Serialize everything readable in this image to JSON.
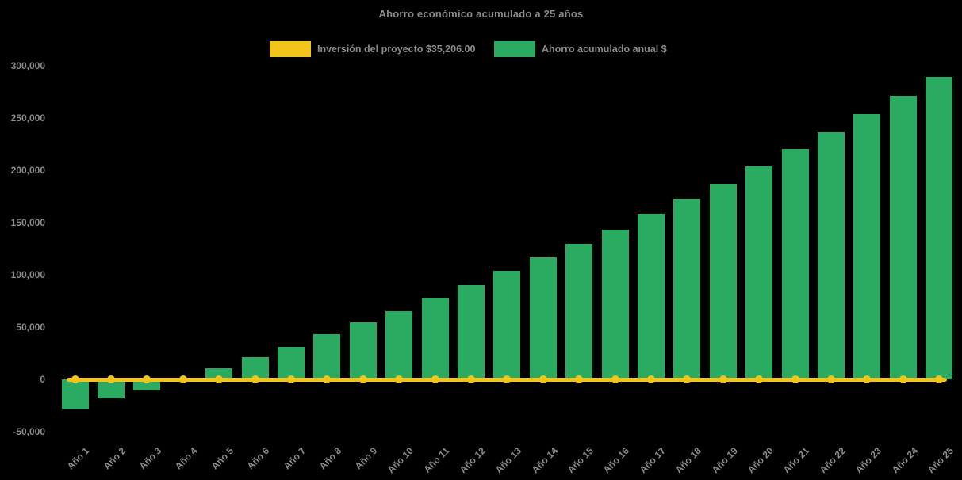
{
  "title": "Ahorro económico acumulado a 25 años",
  "colors": {
    "background": "#000000",
    "text": "#8b8b8b",
    "savings_green": "#2aab61",
    "investment_gold": "#f0c41b"
  },
  "legend": {
    "investment": {
      "label": "Inversión del proyecto $35,206.00",
      "color": "#f0c41b"
    },
    "savings": {
      "label": "Ahorro acumulado anual $",
      "color": "#2aab61"
    }
  },
  "chart_data": {
    "type": "bar",
    "title": "Ahorro económico acumulado a 25 años",
    "categories": [
      "Año 1",
      "Año 2",
      "Año 3",
      "Año 4",
      "Año 5",
      "Año 6",
      "Año 7",
      "Año 8",
      "Año 9",
      "Año 10",
      "Año 11",
      "Año 12",
      "Año 13",
      "Año 14",
      "Año 15",
      "Año 16",
      "Año 17",
      "Año 18",
      "Año 19",
      "Año 20",
      "Año 21",
      "Año 22",
      "Año 23",
      "Año 24",
      "Año 25"
    ],
    "series": [
      {
        "name": "Ahorro acumulado anual $",
        "type": "bar",
        "color": "#2aab61",
        "values": [
          -27500,
          -18000,
          -10500,
          2000,
          11000,
          21500,
          31500,
          43000,
          55000,
          65500,
          78000,
          90000,
          103500,
          117000,
          129500,
          143500,
          158500,
          172500,
          187000,
          203500,
          220000,
          236000,
          253500,
          271000,
          289000
        ]
      },
      {
        "name": "Inversión del proyecto $35,206.00",
        "type": "line",
        "color": "#f0c41b",
        "marker": "circle",
        "investment_amount_label": "$35,206.00",
        "values": [
          0,
          0,
          0,
          0,
          0,
          0,
          0,
          0,
          0,
          0,
          0,
          0,
          0,
          0,
          0,
          0,
          0,
          0,
          0,
          0,
          0,
          0,
          0,
          0,
          0
        ]
      }
    ],
    "y_axis": {
      "ticks": [
        300000,
        250000,
        200000,
        150000,
        100000,
        50000,
        0,
        -50000
      ],
      "range": [
        -62000,
        312000
      ],
      "tick_format": "thousands-comma"
    },
    "x_axis": {
      "label_rotation_deg": -45
    },
    "gridlines": false,
    "legend_position": "top"
  }
}
